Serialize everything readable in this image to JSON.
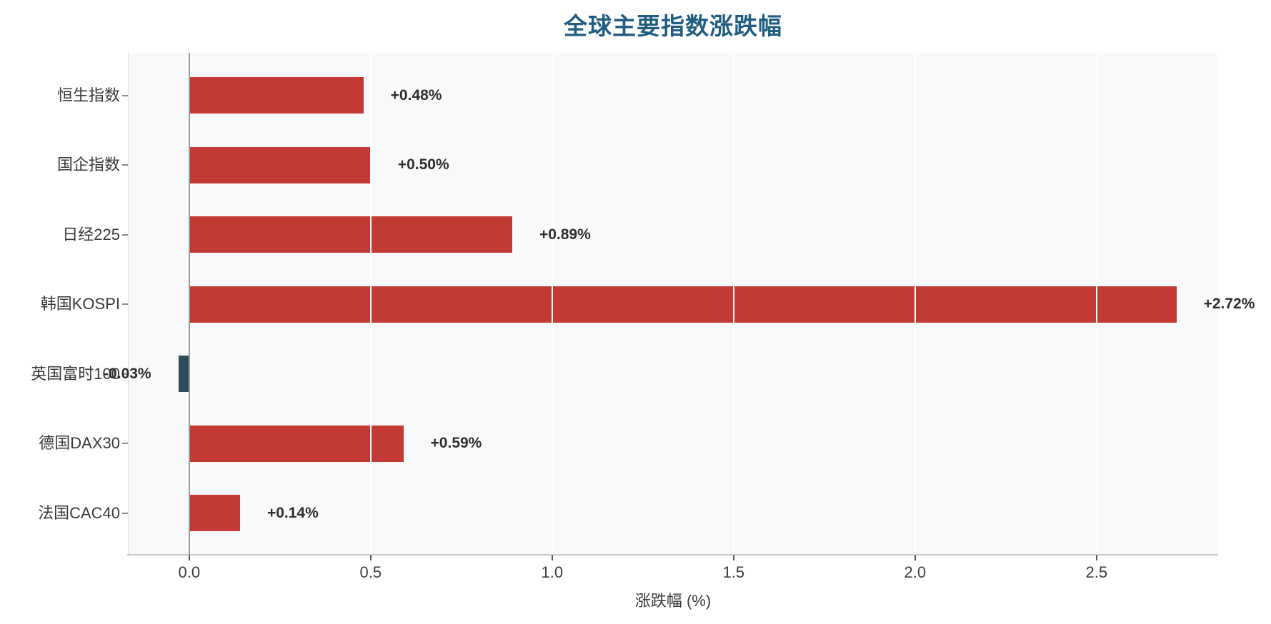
{
  "chart_data": {
    "type": "bar",
    "orientation": "horizontal",
    "title": "全球主要指数涨跌幅",
    "xlabel": "涨跌幅 (%)",
    "ylabel": "",
    "categories": [
      "恒生指数",
      "国企指数",
      "日经225",
      "韩国KOSPI",
      "英国富时100",
      "德国DAX30",
      "法国CAC40"
    ],
    "values": [
      0.48,
      0.5,
      0.89,
      2.72,
      -0.03,
      0.59,
      0.14
    ],
    "value_labels": [
      "+0.48%",
      "+0.50%",
      "+0.89%",
      "+2.72%",
      "-0.03%",
      "+0.59%",
      "+0.14%"
    ],
    "xticks": [
      0,
      0.5,
      1,
      1.5,
      2,
      2.5
    ],
    "xtick_labels": [
      "0.0",
      "0.5",
      "1.0",
      "1.5",
      "2.0",
      "2.5"
    ],
    "xlim": [
      -0.167,
      2.833
    ],
    "grid": true,
    "legend_position": "none",
    "colors": {
      "positive_bar": "#c23a33",
      "negative_bar": "#2f4b5c",
      "title": "#205d80",
      "plot_background": "#f8f9fb",
      "gridline": "#ffffff",
      "zero_line": "#9c9c9c",
      "tick_mark": "#555555",
      "axis_text": "#3d3d3d",
      "value_text": "#2e2e2e"
    }
  }
}
